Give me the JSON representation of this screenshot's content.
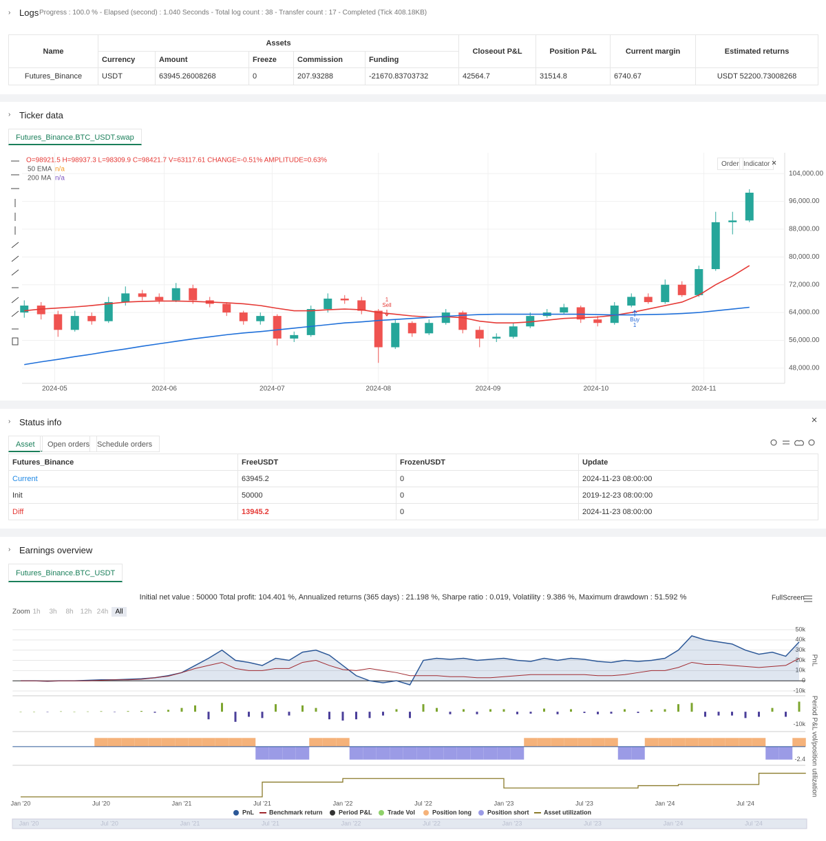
{
  "logs": {
    "title": "Logs",
    "progress": "Progress : 100.0 % - Elapsed (second) : 1.040 Seconds - Total log count : 38 - Transfer count : 17 - Completed (Tick 408.18KB)",
    "table": {
      "headers": [
        "Name",
        "Assets",
        "Closeout P&L",
        "Position P&L",
        "Current margin",
        "Estimated returns"
      ],
      "subheaders": [
        "Currency",
        "Amount",
        "Freeze",
        "Commission",
        "Funding"
      ],
      "rows": [
        [
          "Futures_Binance",
          "USDT",
          "63945.26008268",
          "0",
          "207.93288",
          "-21670.83703732",
          "42564.7",
          "31514.8",
          "6740.67",
          "USDT 52200.73008268"
        ]
      ]
    }
  },
  "ticker": {
    "title": "Ticker data",
    "tab": "Futures_Binance.BTC_USDT.swap",
    "buttons": [
      "Order",
      "Indicator"
    ]
  },
  "status": {
    "title": "Status info",
    "tabs": [
      "Asset",
      "Open orders",
      "Schedule orders"
    ],
    "table": {
      "headers": [
        "Futures_Binance",
        "FreeUSDT",
        "FrozenUSDT",
        "Update"
      ],
      "rows": [
        [
          "Current",
          "63945.2",
          "0",
          "2024-11-23 08:00:00"
        ],
        [
          "Init",
          "50000",
          "0",
          "2019-12-23 08:00:00"
        ],
        [
          "Diff",
          "13945.2",
          "0",
          "2024-11-23 08:00:00"
        ]
      ]
    }
  },
  "earnings": {
    "title": "Earnings overview",
    "tab": "Futures_Binance.BTC_USDT"
  },
  "chart_data": [
    {
      "type": "candlestick",
      "legend_text": "O=98921.5 H=98937.3 L=98309.9 C=98421.7 V=63117.61 CHANGE=-0.51% AMPLITUDE=0.63%",
      "up_color": "#26a69a",
      "down_color": "#ef5350",
      "grid": true,
      "xlim": [
        -0.5,
        43.5
      ],
      "xticks": [
        {
          "value": 1.8,
          "label": "2024-05"
        },
        {
          "value": 8.3,
          "label": "2024-06"
        },
        {
          "value": 14.7,
          "label": "2024-07"
        },
        {
          "value": 21,
          "label": "2024-08"
        },
        {
          "value": 27.5,
          "label": "2024-09"
        },
        {
          "value": 33.9,
          "label": "2024-10"
        },
        {
          "value": 40.3,
          "label": "2024-11"
        }
      ],
      "ylim": [
        44000,
        109000
      ],
      "yticks": [
        {
          "value": 48000,
          "label": "48,000.00"
        },
        {
          "value": 56000,
          "label": "56,000.00"
        },
        {
          "value": 64000,
          "label": "64,000.00"
        },
        {
          "value": 72000,
          "label": "72,000.00"
        },
        {
          "value": 80000,
          "label": "80,000.00"
        },
        {
          "value": 88000,
          "label": "88,000.00"
        },
        {
          "value": 96000,
          "label": "96,000.00"
        },
        {
          "value": 104000,
          "label": "104,000.00"
        }
      ],
      "open": [
        64000,
        66000,
        63500,
        59000,
        63000,
        61500,
        67000,
        69500,
        68500,
        67500,
        71000,
        67500,
        66500,
        64000,
        61500,
        63000,
        56500,
        57500,
        65000,
        68000,
        67500,
        64500,
        54000,
        61000,
        58000,
        61000,
        64000,
        59000,
        56500,
        57000,
        60000,
        63000,
        64000,
        65500,
        62000,
        61000,
        66000,
        68500,
        67000,
        72000,
        69000,
        76500,
        90000,
        90500
      ],
      "high": [
        67500,
        67000,
        64500,
        64500,
        64000,
        68500,
        71500,
        70500,
        69500,
        72500,
        72000,
        68500,
        67000,
        64500,
        64000,
        63500,
        58500,
        66000,
        69500,
        69000,
        68500,
        65000,
        62000,
        61500,
        62000,
        65000,
        64500,
        60000,
        58000,
        61000,
        64000,
        65000,
        66500,
        66000,
        63000,
        67000,
        69500,
        69500,
        73500,
        73000,
        77500,
        93000,
        93000,
        99500
      ],
      "low": [
        62500,
        62000,
        57000,
        58500,
        60500,
        61000,
        66000,
        67500,
        66500,
        67000,
        66500,
        65500,
        63000,
        60500,
        60500,
        54500,
        55500,
        57000,
        64000,
        66500,
        63500,
        49500,
        53500,
        57000,
        57500,
        60500,
        58000,
        54000,
        55500,
        56500,
        59500,
        62500,
        63500,
        61000,
        60000,
        60500,
        65500,
        66500,
        66500,
        68500,
        68500,
        76000,
        86500,
        90000
      ],
      "close": [
        66000,
        63500,
        59000,
        63000,
        61500,
        67000,
        69500,
        68500,
        67500,
        71000,
        67500,
        66500,
        64000,
        61500,
        63000,
        56500,
        57500,
        65000,
        68000,
        67500,
        64500,
        54000,
        61000,
        58000,
        61000,
        64000,
        59000,
        56500,
        57000,
        60000,
        63000,
        64000,
        65500,
        62000,
        61000,
        66000,
        68500,
        67000,
        72000,
        69000,
        76500,
        90000,
        90500,
        98500
      ],
      "series": [
        {
          "name": "50 EMA",
          "status": "n/a",
          "status_color": "#f59b25",
          "color": "#e53935",
          "values": [
            64500,
            65000,
            65300,
            65600,
            66000,
            66500,
            67000,
            67200,
            67300,
            67300,
            67200,
            67000,
            66800,
            66500,
            66000,
            65200,
            64500,
            64500,
            64800,
            65000,
            64800,
            64000,
            63500,
            63000,
            62700,
            62800,
            62500,
            61500,
            61000,
            61000,
            61300,
            61800,
            62300,
            62500,
            62700,
            63200,
            64000,
            65000,
            66000,
            67000,
            69000,
            72000,
            74500,
            77500
          ]
        },
        {
          "name": "200 MA",
          "status": "n/a",
          "status_color": "#7e57c2",
          "color": "#1e6fd9",
          "values": [
            49000,
            49800,
            50500,
            51300,
            52000,
            52800,
            53500,
            54300,
            55000,
            55700,
            56400,
            57000,
            57600,
            58100,
            58500,
            59000,
            59500,
            60000,
            60500,
            61000,
            61300,
            61700,
            62000,
            62300,
            62600,
            62900,
            63200,
            63400,
            63500,
            63500,
            63500,
            63500,
            63500,
            63500,
            63400,
            63300,
            63300,
            63400,
            63500,
            63700,
            64000,
            64500,
            65000,
            65500
          ]
        }
      ],
      "annotations": [
        {
          "text": "Sell",
          "count": 1,
          "color": "#e53935"
        },
        {
          "text": "Buy",
          "count": 1,
          "color": "#1e63d6"
        }
      ]
    },
    {
      "type": "timeseries",
      "stats": "Initial net value : 50000 Total profit: 104.401 %, Annualized returns (365 days) : 21.198 %, Sharpe ratio : 0.019, Volatility : 9.386 %, Maximum drawdown : 51.592 %",
      "zoom_label": "Zoom",
      "zoom_buttons": [
        "1h",
        "3h",
        "8h",
        "12h",
        "24h",
        "All"
      ],
      "fullscreen": "FullScreen",
      "xlim": [
        -0.6,
        58.5
      ],
      "xticks": [
        {
          "value": 0,
          "label": "Jan '20"
        },
        {
          "value": 6,
          "label": "Jul '20"
        },
        {
          "value": 12,
          "label": "Jan '21"
        },
        {
          "value": 18,
          "label": "Jul '21"
        },
        {
          "value": 24,
          "label": "Jan '22"
        },
        {
          "value": 30,
          "label": "Jul '22"
        },
        {
          "value": 36,
          "label": "Jan '23"
        },
        {
          "value": 42,
          "label": "Jul '23"
        },
        {
          "value": 48,
          "label": "Jan '24"
        },
        {
          "value": 54,
          "label": "Jul '24"
        }
      ],
      "panels": [
        {
          "label": "PnL",
          "ylim": [
            -12000,
            52000
          ],
          "grid": true,
          "yticks": [
            {
              "value": -10000,
              "label": "-10k"
            },
            0,
            {
              "value": 10000,
              "label": "10k"
            },
            {
              "value": 20000,
              "label": "20k"
            },
            {
              "value": 30000,
              "label": "30k"
            },
            {
              "value": 40000,
              "label": "40k"
            },
            {
              "value": 50000,
              "label": "50k"
            }
          ],
          "series": [
            {
              "name": "PnL",
              "color": "#2b5797",
              "marker": "circle",
              "values": [
                0,
                0,
                -500,
                0,
                0,
                500,
                1000,
                1000,
                1500,
                2000,
                3000,
                5000,
                8000,
                15000,
                22000,
                30000,
                20000,
                18000,
                15000,
                22000,
                20000,
                28000,
                30000,
                25000,
                15000,
                5000,
                0,
                -2000,
                0,
                -4000,
                20000,
                22000,
                21000,
                22000,
                20000,
                21000,
                22000,
                20000,
                19000,
                22000,
                20000,
                22000,
                21000,
                19000,
                18000,
                20000,
                19000,
                20000,
                22000,
                30000,
                44000,
                40000,
                38000,
                36000,
                30000,
                26000,
                28000,
                24000,
                38000
              ]
            },
            {
              "name": "Benchmark return",
              "color": "#a0282e",
              "marker": "line",
              "values": [
                0,
                0,
                -500,
                0,
                0,
                0,
                500,
                1000,
                1000,
                1500,
                3000,
                4500,
                8000,
                12000,
                15000,
                18000,
                12000,
                10000,
                10000,
                12000,
                12000,
                18000,
                20000,
                15000,
                11000,
                10000,
                12000,
                10000,
                8000,
                5000,
                5000,
                5000,
                4000,
                4000,
                3000,
                3000,
                4000,
                5000,
                6000,
                6000,
                6000,
                6000,
                6000,
                5000,
                5000,
                6000,
                8000,
                10000,
                10000,
                13000,
                18000,
                16000,
                16000,
                15000,
                14000,
                13000,
                14000,
                15000,
                22000
              ]
            }
          ]
        },
        {
          "label": "Period P&L",
          "ylim": [
            -13000,
            11000
          ],
          "yticks": [
            {
              "value": -10000,
              "label": "-10k"
            }
          ],
          "series": [
            {
              "name": "Period P&L",
              "color": "#333333",
              "marker": "circle",
              "up_color": "#7da52f",
              "down_color": "#4b3f9a",
              "values": [
                0,
                0,
                -200,
                300,
                100,
                200,
                400,
                -300,
                500,
                600,
                -800,
                1500,
                3000,
                5000,
                -6000,
                7000,
                -8000,
                -4000,
                -5000,
                6000,
                -3000,
                5000,
                3000,
                -6000,
                -7000,
                -6000,
                -5000,
                -3000,
                2000,
                -5000,
                6000,
                3000,
                -2000,
                2000,
                -2000,
                2000,
                2000,
                -2000,
                -1500,
                2500,
                -2000,
                2000,
                -1000,
                -2000,
                -1500,
                2000,
                -1000,
                1500,
                2000,
                6000,
                7000,
                -4000,
                -3000,
                -3000,
                -5000,
                -4000,
                3000,
                -4000,
                8000
              ]
            }
          ]
        },
        {
          "label": "vol/position",
          "ylim": [
            -3.2,
            2.4
          ],
          "yticks": [
            -2.4
          ],
          "series": [
            {
              "name": "Trade Vol",
              "color": "#8fd16a",
              "marker": "circle"
            },
            {
              "name": "Position long",
              "color": "#f5b27a",
              "marker": "circle",
              "values": [
                null,
                null,
                null,
                null,
                null,
                null,
                1.6,
                1.6,
                1.6,
                1.6,
                1.6,
                1.6,
                1.6,
                1.6,
                1.6,
                1.6,
                1.6,
                1.6,
                null,
                null,
                null,
                null,
                1.6,
                1.6,
                1.6,
                null,
                null,
                null,
                null,
                null,
                null,
                null,
                null,
                null,
                null,
                null,
                null,
                null,
                1.6,
                1.6,
                1.6,
                1.6,
                1.6,
                1.6,
                1.6,
                null,
                null,
                1.6,
                1.6,
                1.6,
                1.6,
                1.6,
                1.6,
                1.6,
                1.6,
                1.6,
                null,
                null,
                1.6
              ]
            },
            {
              "name": "Position short",
              "color": "#9b9be6",
              "marker": "circle",
              "values": [
                null,
                null,
                null,
                null,
                null,
                null,
                null,
                null,
                null,
                null,
                null,
                null,
                null,
                null,
                null,
                null,
                null,
                null,
                -2.4,
                -2.4,
                -2.4,
                -2.4,
                null,
                null,
                null,
                -2.4,
                -2.4,
                -2.4,
                -2.4,
                -2.4,
                -2.4,
                -2.4,
                -2.4,
                -2.4,
                -2.4,
                -2.4,
                -2.4,
                -2.4,
                null,
                null,
                null,
                null,
                null,
                null,
                null,
                -2.4,
                -2.4,
                null,
                null,
                null,
                null,
                null,
                null,
                null,
                null,
                null,
                -2.4,
                -2.4,
                null
              ]
            }
          ]
        },
        {
          "label": "utilization",
          "ylim": [
            -0.05,
            1
          ],
          "series": [
            {
              "name": "Asset utilization",
              "color": "#8a7a2a",
              "marker": "line",
              "values": [
                0,
                0,
                0,
                0,
                0,
                0,
                0,
                0,
                0,
                0,
                0,
                0,
                0,
                0,
                0,
                0,
                0,
                0,
                0.5,
                0.5,
                0.5,
                0.5,
                0.5,
                0.5,
                0.62,
                0.62,
                0.62,
                0.62,
                0.62,
                0.62,
                0.62,
                0.62,
                0.62,
                0.62,
                0.62,
                0.62,
                0.3,
                0.3,
                0.3,
                0.3,
                0.3,
                0.3,
                0.3,
                0.3,
                0.3,
                0.3,
                0.38,
                0.38,
                0.38,
                0.42,
                0.42,
                0.42,
                0.42,
                0.42,
                0.42,
                0.8,
                0.8,
                0.8,
                0.8
              ]
            }
          ]
        }
      ]
    }
  ]
}
